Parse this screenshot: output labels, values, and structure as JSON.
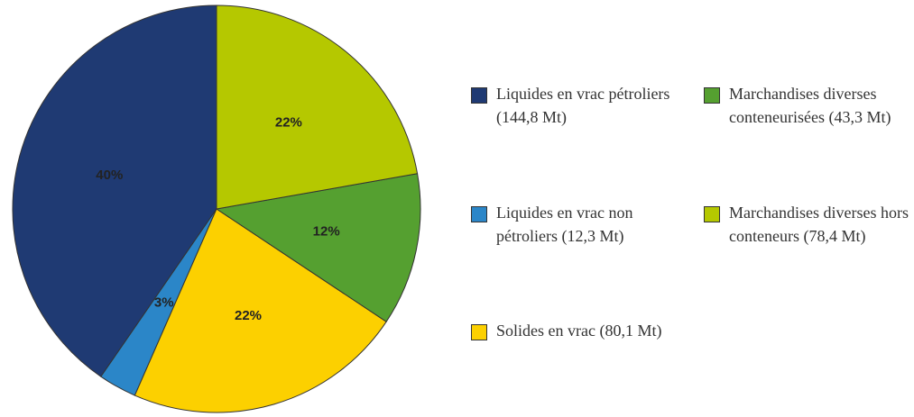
{
  "chart_data": {
    "type": "pie",
    "categories": [
      "Liquides en vrac pétroliers (144,8 Mt)",
      "Liquides en vrac non pétroliers (12,3 Mt)",
      "Solides en vrac (80,1 Mt)",
      "Marchandises diverses conteneurisées (43,3 Mt)",
      "Marchandises diverses hors conteneurs (78,4 Mt)"
    ],
    "values": [
      40,
      3,
      22,
      12,
      22
    ],
    "value_labels": [
      "40%",
      "3%",
      "22%",
      "12%",
      "22%"
    ],
    "colors": [
      "#1f3a73",
      "#2b86c8",
      "#fcd000",
      "#55a030",
      "#b5c800"
    ],
    "legend": "right"
  }
}
